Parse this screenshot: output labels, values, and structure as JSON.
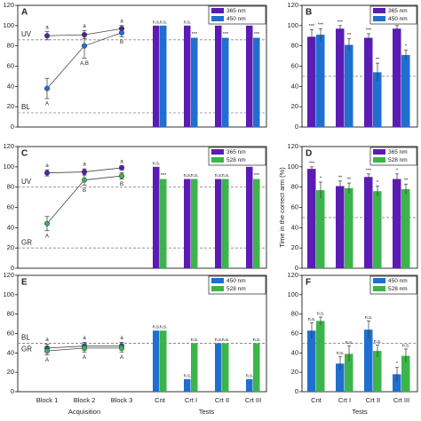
{
  "chart_data": [
    {
      "type": "combo",
      "panel": "A",
      "ylim": [
        0,
        120
      ],
      "yticks": [
        0,
        20,
        40,
        60,
        80,
        100,
        120
      ],
      "categories": [
        null,
        null,
        null
      ],
      "series": [
        {
          "color": "#5b1cb5",
          "values": [
            90,
            91,
            97
          ],
          "errors": [
            4,
            4,
            3
          ],
          "labels": [
            "a",
            "a",
            "a"
          ]
        },
        {
          "color": "#1f6fd0",
          "values": [
            38,
            80,
            93
          ],
          "errors": [
            10,
            12,
            4
          ],
          "labels": [
            "A",
            "A,B",
            "B"
          ]
        }
      ],
      "reference_lines": [
        {
          "value": 86,
          "label": "UV",
          "color": "#5b1cb5"
        },
        {
          "value": 14,
          "label": "BL",
          "color": "#1f6fd0"
        }
      ],
      "bar_categories": [
        null,
        null,
        null,
        null
      ],
      "bar_series": [
        {
          "name": "365 nm",
          "color": "#5b1cb5",
          "values": [
            100,
            100,
            100,
            100
          ],
          "labels": [
            "n.s.",
            "n.s.",
            "n.s.",
            "n.s."
          ]
        },
        {
          "name": "450 nm",
          "color": "#1f6fd0",
          "values": [
            100,
            88,
            88,
            88
          ],
          "labels": [
            "n.s.",
            "***",
            "***",
            "***"
          ]
        }
      ]
    },
    {
      "type": "bar",
      "panel": "B",
      "ylim": [
        0,
        120
      ],
      "yticks": [
        0,
        20,
        40,
        60,
        80,
        100,
        120
      ],
      "categories": [
        null,
        null,
        null,
        null
      ],
      "reference_lines": [
        {
          "value": 50,
          "color": "#888"
        }
      ],
      "series": [
        {
          "name": "365 nm",
          "color": "#5b1cb5",
          "values": [
            89,
            97,
            88,
            97
          ],
          "errors": [
            7,
            3,
            4,
            3
          ],
          "labels": [
            "***",
            "***",
            "***",
            "**"
          ]
        },
        {
          "name": "450 nm",
          "color": "#1f6fd0",
          "values": [
            91,
            81,
            54,
            71
          ],
          "errors": [
            6,
            6,
            9,
            5
          ],
          "labels": [
            "***",
            "**",
            "**",
            "*"
          ]
        }
      ]
    },
    {
      "type": "combo",
      "panel": "C",
      "ylim": [
        0,
        120
      ],
      "yticks": [
        0,
        20,
        40,
        60,
        80,
        100,
        120
      ],
      "categories": [
        null,
        null,
        null
      ],
      "series": [
        {
          "color": "#5b1cb5",
          "values": [
            94,
            95,
            99
          ],
          "errors": [
            3,
            3,
            2
          ],
          "labels": [
            "a",
            "a",
            "a"
          ]
        },
        {
          "color": "#3bb54a",
          "values": [
            44,
            87,
            91
          ],
          "errors": [
            7,
            5,
            3
          ],
          "labels": [
            "A",
            "B",
            "B"
          ]
        }
      ],
      "reference_lines": [
        {
          "value": 80,
          "label": "UV",
          "color": "#5b1cb5"
        },
        {
          "value": 20,
          "label": "GR",
          "color": "#3bb54a"
        }
      ],
      "bar_categories": [
        null,
        null,
        null,
        null
      ],
      "bar_series": [
        {
          "name": "365 nm",
          "color": "#5b1cb5",
          "values": [
            100,
            88,
            88,
            100
          ],
          "labels": [
            "n.s.",
            "n.s.",
            "n.s.",
            "n.s."
          ]
        },
        {
          "name": "528 nm",
          "color": "#3bb54a",
          "values": [
            88,
            88,
            88,
            88
          ],
          "labels": [
            "***",
            "n.s.",
            "n.s.",
            "***"
          ]
        }
      ]
    },
    {
      "type": "bar",
      "panel": "D",
      "ylim": [
        0,
        120
      ],
      "yticks": [
        0,
        20,
        40,
        60,
        80,
        100,
        120
      ],
      "ylabel": "Time in the correct arm (%)",
      "categories": [
        null,
        null,
        null,
        null
      ],
      "reference_lines": [
        {
          "value": 50,
          "color": "#888"
        }
      ],
      "series": [
        {
          "name": "365 nm",
          "color": "#5b1cb5",
          "values": [
            98,
            81,
            90,
            88
          ],
          "errors": [
            2,
            5,
            3,
            5
          ],
          "labels": [
            "***",
            "**",
            "***",
            "*"
          ]
        },
        {
          "name": "528 nm",
          "color": "#3bb54a",
          "values": [
            77,
            79,
            76,
            78
          ],
          "errors": [
            8,
            5,
            5,
            5
          ],
          "labels": [
            "*",
            "**",
            "*",
            "**"
          ]
        }
      ]
    },
    {
      "type": "combo",
      "panel": "E",
      "ylim": [
        0,
        120
      ],
      "yticks": [
        0,
        20,
        40,
        60,
        80,
        100,
        120
      ],
      "categories": [
        "Block 1",
        "Block 2",
        "Block 3"
      ],
      "xlabel": "Acquisition",
      "series": [
        {
          "color": "#1f6fd0",
          "values": [
            45,
            47,
            47
          ],
          "errors": [
            4,
            4,
            4
          ],
          "labels": [
            "a",
            "a",
            "a"
          ]
        },
        {
          "color": "#3bb54a",
          "values": [
            42,
            45,
            45
          ],
          "errors": [
            4,
            4,
            4
          ],
          "labels": [
            "A",
            "A",
            "A"
          ]
        }
      ],
      "reference_lines": [
        {
          "value": 50,
          "label": "BL",
          "color": "#1f6fd0"
        },
        {
          "value": 50,
          "label": "GR",
          "color": "#3bb54a"
        }
      ],
      "bar_categories": [
        "Cnt",
        "Crt I",
        "Crt II",
        "Crt III"
      ],
      "bar_xlabel": "Tests",
      "bar_series": [
        {
          "name": "450 nm",
          "color": "#1f6fd0",
          "values": [
            63,
            13,
            50,
            13
          ],
          "labels": [
            "n.s.",
            "n.s.",
            "n.s.",
            "n.s."
          ]
        },
        {
          "name": "528 nm",
          "color": "#3bb54a",
          "values": [
            63,
            50,
            50,
            50
          ],
          "labels": [
            "n.s.",
            "n.s.",
            "n.s.",
            "n.s."
          ]
        }
      ]
    },
    {
      "type": "bar",
      "panel": "F",
      "ylim": [
        0,
        120
      ],
      "yticks": [
        0,
        20,
        40,
        60,
        80,
        100,
        120
      ],
      "categories": [
        "Cnt",
        "Crt I",
        "Crt II",
        "Crt III"
      ],
      "xlabel": "Tests",
      "reference_lines": [
        {
          "value": 50,
          "color": "#888"
        }
      ],
      "series": [
        {
          "name": "450 nm",
          "color": "#1f6fd0",
          "values": [
            63,
            29,
            64,
            18
          ],
          "errors": [
            8,
            7,
            9,
            7
          ],
          "labels": [
            "n.s.",
            "n.s.",
            "n.s.",
            "*"
          ]
        },
        {
          "name": "528 nm",
          "color": "#3bb54a",
          "values": [
            73,
            39,
            42,
            37
          ],
          "errors": [
            4,
            8,
            6,
            7
          ],
          "labels": [
            "n.s.",
            "n.s.",
            "n.s.",
            "n.s."
          ]
        }
      ]
    }
  ]
}
